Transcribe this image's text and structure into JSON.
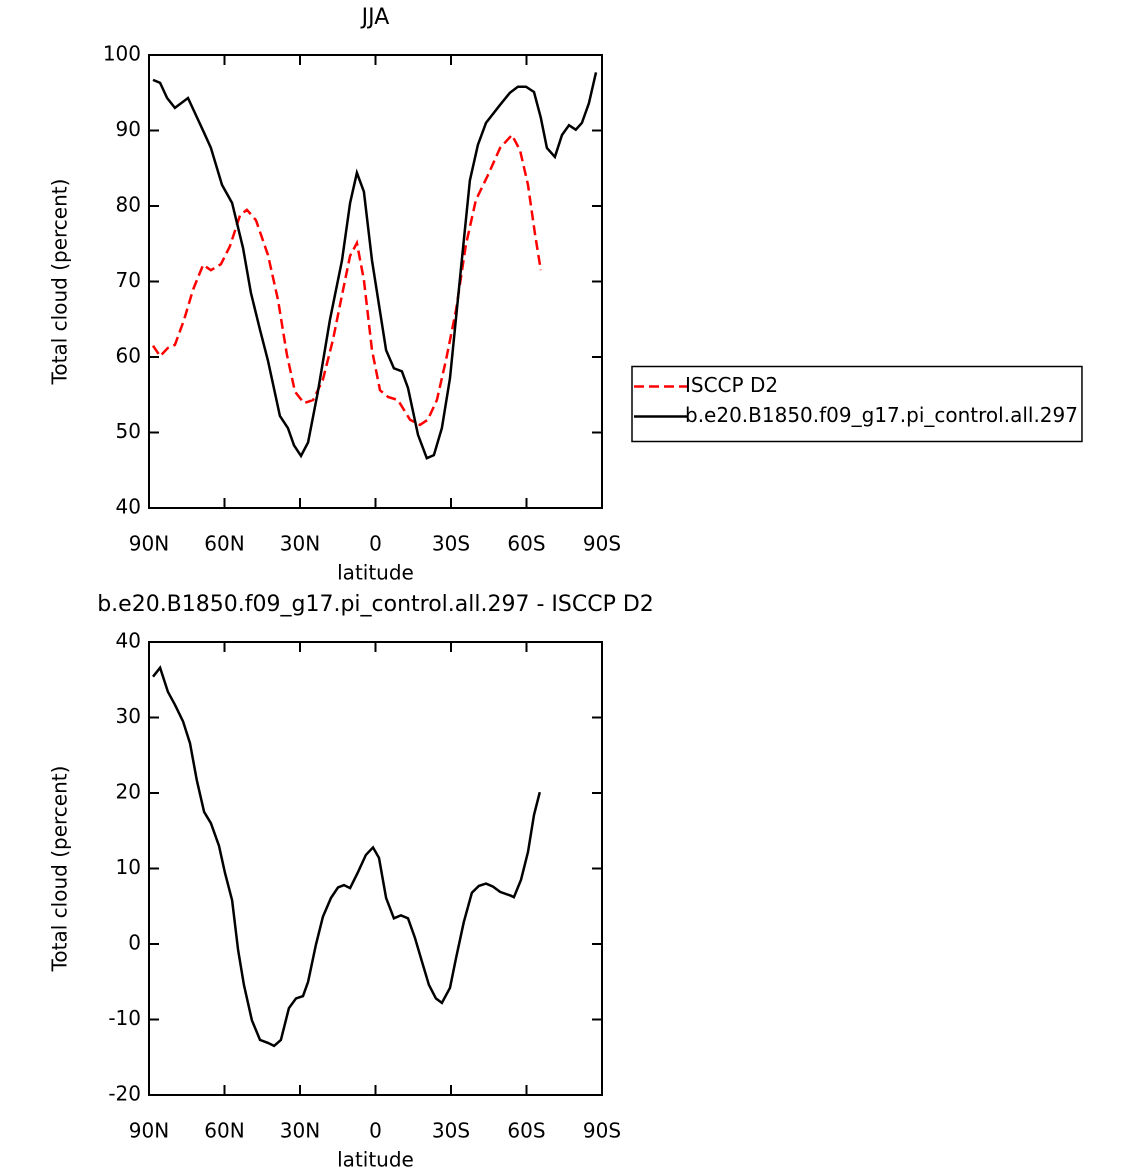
{
  "chart_data": [
    {
      "type": "line",
      "title": "JJA",
      "y_label": "Total cloud (percent)",
      "x_label": "latitude",
      "xlim": [
        90,
        -90
      ],
      "ylim": [
        40,
        100
      ],
      "xticks": [
        {
          "value": 90,
          "label": "90N"
        },
        {
          "value": 60,
          "label": "60N"
        },
        {
          "value": 30,
          "label": "30N"
        },
        0,
        {
          "value": -30,
          "label": "30S"
        },
        {
          "value": -60,
          "label": "60S"
        },
        {
          "value": -90,
          "label": "90S"
        }
      ],
      "yticks": [
        40,
        50,
        60,
        70,
        80,
        90,
        100
      ],
      "legend": "right",
      "series": [
        {
          "name": "ISCCP D2",
          "color": "#ff0000",
          "line_style": "dashed",
          "x": [
            88.4,
            85.6,
            82.5,
            79.7,
            76.1,
            72.5,
            68.5,
            65.4,
            61.4,
            57.8,
            53.8,
            51.1,
            47.5,
            42.7,
            38.7,
            35.2,
            32.0,
            28.4,
            24.8,
            20.9,
            16.9,
            13.3,
            10.1,
            7.4,
            4.6,
            1.4,
            -1.8,
            -5.0,
            -8.9,
            -13.7,
            -17.7,
            -20.8,
            -24.4,
            -28.0,
            -32.0,
            -35.9,
            -39.9,
            -44.7,
            -49.5,
            -54.2,
            -57.4,
            -60.6,
            -63.4,
            -65.7
          ],
          "values": [
            61.5,
            60.1,
            61.2,
            61.6,
            64.9,
            68.9,
            72.2,
            71.5,
            72.3,
            74.7,
            78.8,
            79.5,
            78.1,
            73.5,
            67.5,
            60.3,
            55.4,
            53.9,
            54.3,
            57.0,
            62.3,
            68.2,
            73.4,
            75.1,
            70.2,
            60.9,
            55.6,
            54.7,
            54.3,
            51.7,
            51.0,
            51.7,
            54.3,
            59.6,
            66.2,
            74.8,
            80.8,
            84.1,
            87.7,
            89.4,
            87.4,
            82.8,
            76.2,
            71.5
          ]
        },
        {
          "name": "b.e20.B1850.f09_g17.pi_control.all.297",
          "color": "#000000",
          "line_style": "solid",
          "x": [
            88.4,
            85.6,
            82.8,
            79.7,
            74.5,
            68.1,
            65.4,
            61.0,
            57.0,
            52.6,
            49.5,
            45.9,
            42.7,
            38.0,
            34.8,
            32.4,
            29.6,
            26.8,
            22.9,
            18.1,
            13.3,
            10.1,
            7.4,
            4.6,
            1.4,
            -4.2,
            -7.3,
            -10.5,
            -12.9,
            -16.9,
            -20.4,
            -23.2,
            -26.4,
            -29.6,
            -33.9,
            -37.5,
            -40.7,
            -43.9,
            -49.5,
            -53.4,
            -56.6,
            -59.8,
            -63.0,
            -65.7,
            -68.1,
            -71.3,
            -74.1,
            -76.9,
            -79.6,
            -82.0,
            -84.8,
            -87.6
          ],
          "values": [
            96.7,
            96.3,
            94.3,
            93.0,
            94.3,
            89.7,
            87.7,
            82.8,
            80.4,
            74.4,
            68.5,
            63.6,
            59.5,
            52.2,
            50.6,
            48.3,
            46.9,
            48.7,
            55.4,
            64.9,
            72.8,
            80.4,
            84.4,
            81.9,
            72.8,
            60.9,
            58.5,
            58.1,
            55.9,
            49.7,
            46.6,
            47.0,
            50.6,
            57.2,
            71.5,
            83.4,
            88.1,
            91.0,
            93.4,
            95.0,
            95.8,
            95.8,
            95.1,
            91.7,
            87.7,
            86.5,
            89.4,
            90.7,
            90.1,
            91.0,
            93.6,
            97.7
          ]
        }
      ]
    },
    {
      "type": "line",
      "title": "b.e20.B1850.f09_g17.pi_control.all.297 - ISCCP D2",
      "y_label": "Total cloud (percent)",
      "x_label": "latitude",
      "xlim": [
        90,
        -90
      ],
      "ylim": [
        -20,
        40
      ],
      "xticks": [
        {
          "value": 90,
          "label": "90N"
        },
        {
          "value": 60,
          "label": "60N"
        },
        {
          "value": 30,
          "label": "30N"
        },
        0,
        {
          "value": -30,
          "label": "30S"
        },
        {
          "value": -60,
          "label": "60S"
        },
        {
          "value": -90,
          "label": "90S"
        }
      ],
      "yticks": [
        -20,
        -10,
        0,
        10,
        20,
        30,
        40
      ],
      "series": [
        {
          "color": "#000000",
          "line_style": "solid",
          "x": [
            88.4,
            85.6,
            82.5,
            79.7,
            76.5,
            73.7,
            71.0,
            68.1,
            65.4,
            62.2,
            59.8,
            57.0,
            54.6,
            52.3,
            49.1,
            45.9,
            42.7,
            40.3,
            37.6,
            34.4,
            31.6,
            28.8,
            26.8,
            23.7,
            20.9,
            17.7,
            14.9,
            12.5,
            10.1,
            7.0,
            3.8,
            1.0,
            -1.4,
            -4.2,
            -7.3,
            -10.1,
            -12.9,
            -15.7,
            -18.5,
            -21.2,
            -24.0,
            -26.4,
            -29.6,
            -32.0,
            -35.1,
            -38.3,
            -41.1,
            -43.9,
            -46.7,
            -49.5,
            -53.8,
            -55.0,
            -57.8,
            -60.6,
            -63.0,
            -65.3
          ],
          "values": [
            35.4,
            36.6,
            33.4,
            31.7,
            29.5,
            26.6,
            21.7,
            17.5,
            16.0,
            13.0,
            9.4,
            5.8,
            -0.8,
            -5.4,
            -10.1,
            -12.7,
            -13.1,
            -13.5,
            -12.7,
            -8.5,
            -7.2,
            -6.9,
            -5.0,
            -0.1,
            3.6,
            6.1,
            7.5,
            7.8,
            7.4,
            9.5,
            11.8,
            12.8,
            11.4,
            6.1,
            3.4,
            3.8,
            3.4,
            0.8,
            -2.4,
            -5.4,
            -7.2,
            -7.8,
            -5.8,
            -1.9,
            2.9,
            6.8,
            7.7,
            8.0,
            7.6,
            6.9,
            6.4,
            6.2,
            8.5,
            12.2,
            17.1,
            20.1
          ]
        }
      ]
    }
  ]
}
